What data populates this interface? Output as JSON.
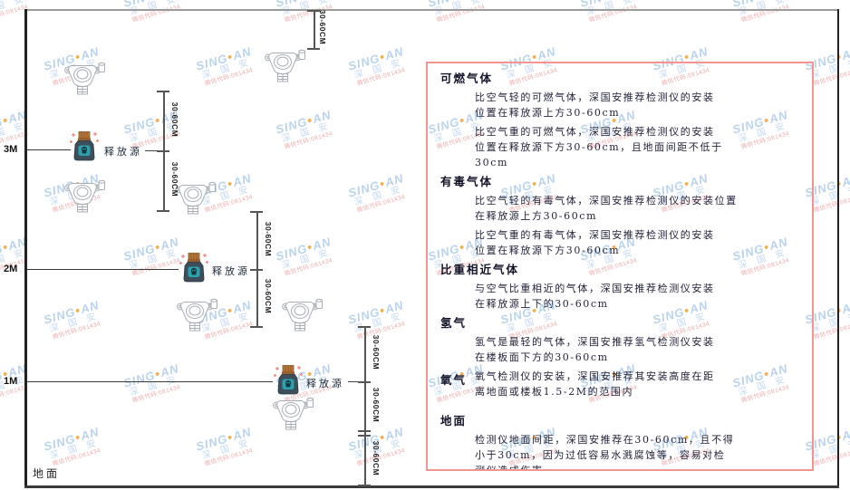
{
  "watermark": {
    "brand_left": "SING",
    "brand_right": "AN",
    "brand_cn": "深 国 安",
    "code": "微信代码:081434",
    "blue": "#b3cfec",
    "orange": "#f2a636",
    "red": "#eda0a2"
  },
  "diagram": {
    "height_labels": [
      "3M",
      "2M",
      "1M"
    ],
    "ground_label": "地面",
    "release_source_label": "释放源",
    "dimension_label": "30-60CM"
  },
  "panel": {
    "border_color": "#f2948f",
    "sections": [
      {
        "heading": "可燃气体",
        "paragraphs": [
          [
            "比空气轻的可燃气体，深国安推荐检测仪的安装",
            "位置在释放源上方30-60cm"
          ],
          [
            "比空气重的可燃气体，深国安推荐检测仪的安装",
            "位置在释放源下方30-60cm，且地面间距不低于",
            "30cm"
          ]
        ]
      },
      {
        "heading": "有毒气体",
        "paragraphs": [
          [
            "比空气轻的有毒气体，深国安推荐检测仪的安装位置",
            "在释放源上方30-60cm"
          ],
          [
            "比空气重的有毒气体，深国安推荐检测仪的安装",
            "位置在释放源下方30-60cm"
          ]
        ]
      },
      {
        "heading": "比重相近气体",
        "paragraphs": [
          [
            "与空气比重相近的气体，深国安推荐检测仪安装",
            "在释放源上下的30-60cm"
          ]
        ]
      },
      {
        "heading": "氢气",
        "paragraphs": [
          [
            "氢气是最轻的气体，深国安推荐氢气检测仪安装",
            "在楼板面下方的30-60cm"
          ]
        ]
      },
      {
        "heading": "氧气",
        "inline": true,
        "paragraphs": [
          [
            "氧气检测仪的安装，深国安推荐其安装高度在距",
            "离地面或楼板1.5-2M的范围内"
          ]
        ]
      },
      {
        "heading": "地面",
        "gap_before": true,
        "paragraphs": [
          [
            "检测仪地面间距，深国安推荐在30-60cm，且不得",
            "小于30cm，因为过低容易水溅腐蚀等，容易对检",
            "测仪造成伤害"
          ]
        ]
      }
    ]
  }
}
